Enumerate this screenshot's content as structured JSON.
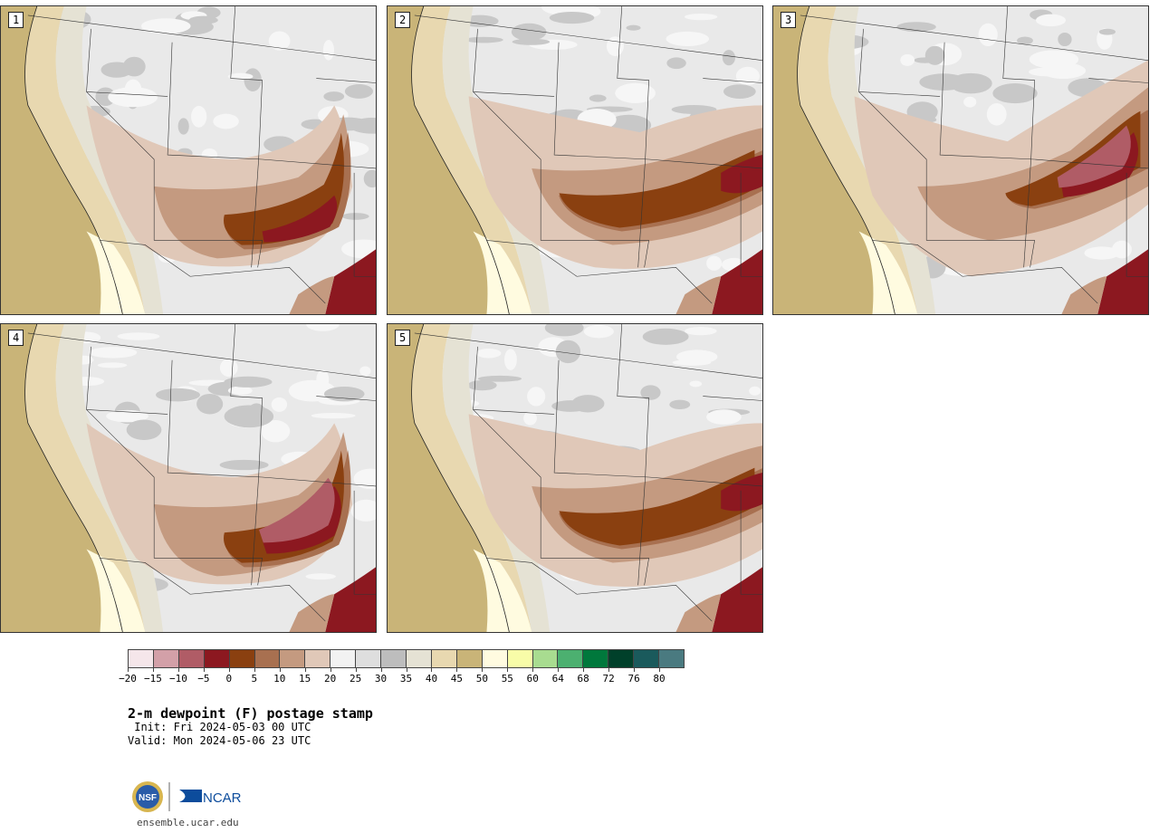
{
  "stamps": [
    {
      "label": "1",
      "pattern": "curve"
    },
    {
      "label": "2",
      "pattern": "east"
    },
    {
      "label": "3",
      "pattern": "northeast"
    },
    {
      "label": "4",
      "pattern": "curve-strong"
    },
    {
      "label": "5",
      "pattern": "east-wide"
    }
  ],
  "colorbar": {
    "colors": [
      "#f5e6ea",
      "#d3a0a8",
      "#b05c66",
      "#8c1820",
      "#8a4010",
      "#a87050",
      "#c49a80",
      "#e0c8b8",
      "#f2f2f2",
      "#dedede",
      "#bdbdbd",
      "#e5e2d4",
      "#e8d8b0",
      "#c9b478",
      "#fffbe0",
      "#f8fca8",
      "#a8dc90",
      "#4cb070",
      "#00783c",
      "#00402a",
      "#1a5a5c",
      "#4a7a80"
    ],
    "ticks": [
      "−20",
      "−15",
      "−10",
      "−5",
      "0",
      "5",
      "10",
      "15",
      "20",
      "25",
      "30",
      "35",
      "40",
      "45",
      "50",
      "55",
      "60",
      "64",
      "68",
      "72",
      "76",
      "80"
    ]
  },
  "title": "2-m dewpoint (F) postage stamp",
  "init": " Init: Fri 2024-05-03 00 UTC",
  "valid": "Valid: Mon 2024-05-06 23 UTC",
  "logos": {
    "nsf": "NSF",
    "ncar": "NCAR"
  },
  "website": "ensemble.ucar.edu"
}
